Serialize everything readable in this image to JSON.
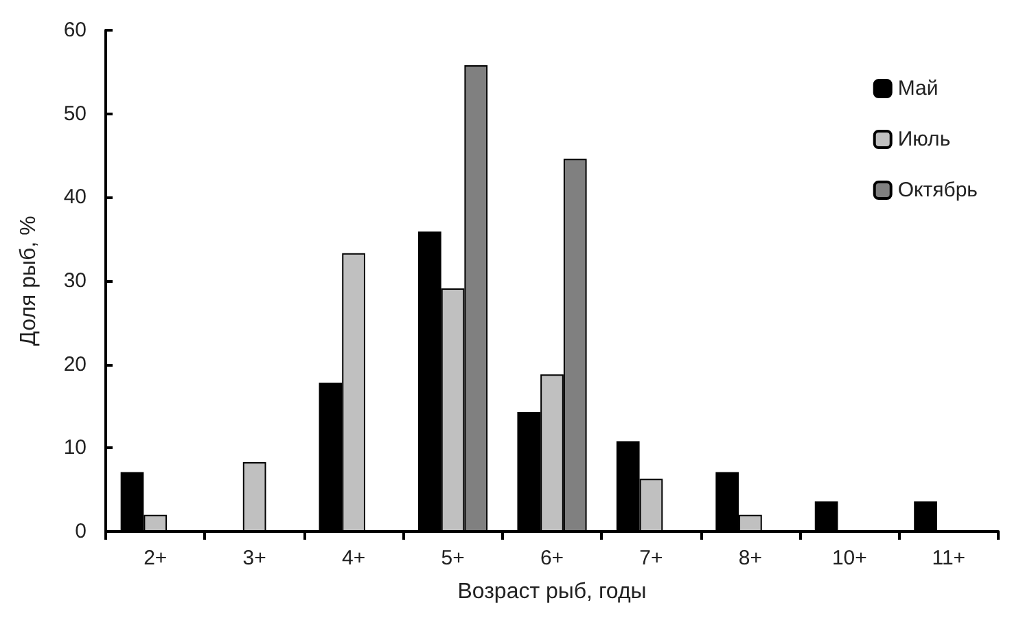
{
  "chart_data": {
    "type": "bar",
    "xlabel": "Возраст рыб, годы",
    "ylabel": "Доля рыб, %",
    "categories": [
      "2+",
      "3+",
      "4+",
      "5+",
      "6+",
      "7+",
      "8+",
      "10+",
      "11+"
    ],
    "series": [
      {
        "name": "Май",
        "color": "#000000",
        "values": [
          7.1,
          null,
          17.8,
          35.9,
          14.3,
          10.8,
          7.1,
          3.6,
          3.6
        ]
      },
      {
        "name": "Июль",
        "color": "#c0c0c0",
        "values": [
          2.0,
          8.3,
          33.3,
          29.1,
          18.8,
          6.3,
          2.0,
          null,
          null
        ]
      },
      {
        "name": "Октябрь",
        "color": "#808080",
        "values": [
          null,
          null,
          null,
          55.8,
          44.6,
          null,
          null,
          null,
          null
        ]
      }
    ],
    "ylim": [
      0,
      60
    ],
    "yticks": [
      0,
      10,
      20,
      30,
      40,
      50,
      60
    ],
    "grid": false,
    "legend": "top right"
  }
}
